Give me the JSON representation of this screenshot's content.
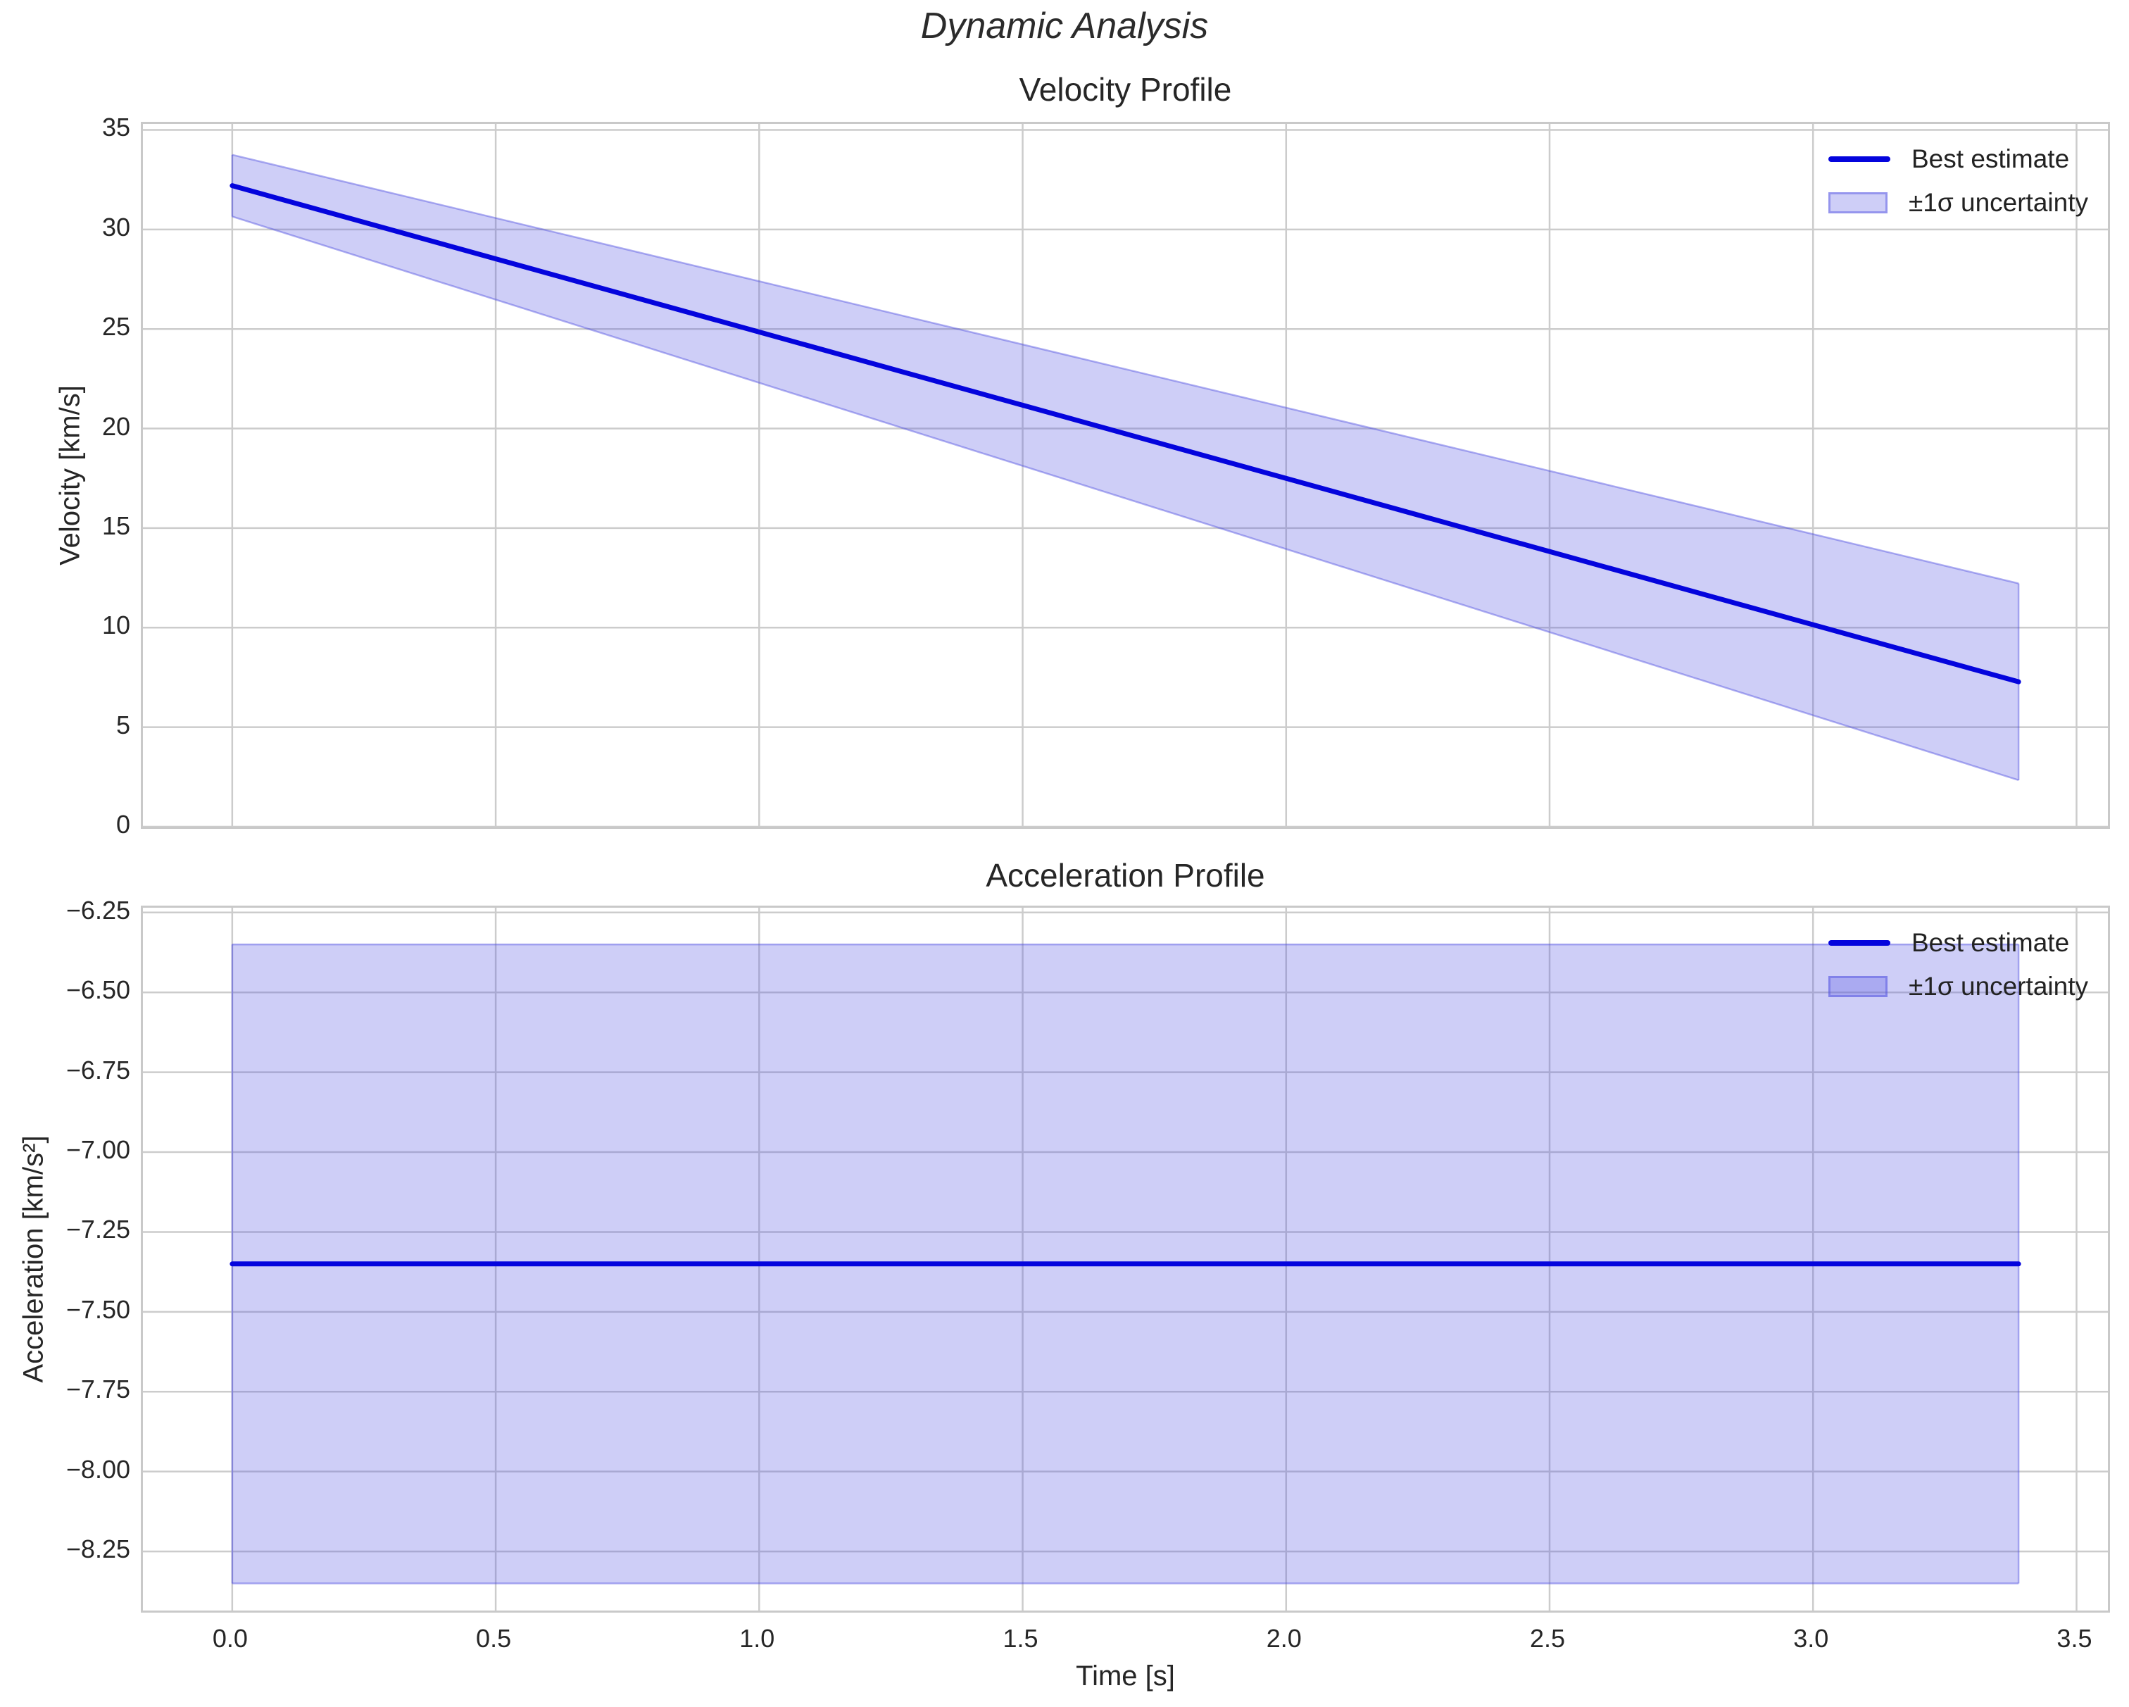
{
  "figure": {
    "title": "Dynamic Analysis"
  },
  "colors": {
    "line": "#0404dd",
    "band_rgb": "80,80,225",
    "band_fill_alpha": 0.28,
    "band_edge_alpha": 0.45,
    "grid": "#cccccc",
    "spine": "#c9c9c9",
    "text": "#262626"
  },
  "chart_data": [
    {
      "type": "line",
      "title": "Velocity Profile",
      "ylabel": "Velocity [km/s]",
      "xlabel": null,
      "xlim": [
        -0.1695,
        3.5595
      ],
      "ylim": [
        0,
        35.3
      ],
      "grid": true,
      "legend_position": "upper right",
      "show_xtick_labels": false,
      "xticks": [
        {
          "v": 0.0,
          "label": "0.0"
        },
        {
          "v": 0.5,
          "label": "0.5"
        },
        {
          "v": 1.0,
          "label": "1.0"
        },
        {
          "v": 1.5,
          "label": "1.5"
        },
        {
          "v": 2.0,
          "label": "2.0"
        },
        {
          "v": 2.5,
          "label": "2.5"
        },
        {
          "v": 3.0,
          "label": "3.0"
        },
        {
          "v": 3.5,
          "label": "3.5"
        }
      ],
      "yticks": [
        {
          "v": 0,
          "label": "0"
        },
        {
          "v": 5,
          "label": "5"
        },
        {
          "v": 10,
          "label": "10"
        },
        {
          "v": 15,
          "label": "15"
        },
        {
          "v": 20,
          "label": "20"
        },
        {
          "v": 25,
          "label": "25"
        },
        {
          "v": 30,
          "label": "30"
        },
        {
          "v": 35,
          "label": "35"
        }
      ],
      "series": [
        {
          "name": "Best estimate",
          "x": [
            0,
            3.39
          ],
          "y": [
            32.2,
            7.28
          ]
        }
      ],
      "band": {
        "name": "±1σ uncertainty",
        "x": [
          0,
          3.39
        ],
        "upper": [
          33.75,
          12.22
        ],
        "lower": [
          30.65,
          2.34
        ]
      },
      "legend": [
        {
          "swatch": "line",
          "label": "Best estimate"
        },
        {
          "swatch": "band",
          "label": "±1σ uncertainty"
        }
      ]
    },
    {
      "type": "line",
      "title": "Acceleration Profile",
      "ylabel": "Acceleration [km/s²]",
      "xlabel": "Time [s]",
      "xlim": [
        -0.1695,
        3.5595
      ],
      "ylim": [
        -8.435,
        -6.235
      ],
      "grid": true,
      "legend_position": "upper right",
      "show_xtick_labels": true,
      "xticks": [
        {
          "v": 0.0,
          "label": "0.0"
        },
        {
          "v": 0.5,
          "label": "0.5"
        },
        {
          "v": 1.0,
          "label": "1.0"
        },
        {
          "v": 1.5,
          "label": "1.5"
        },
        {
          "v": 2.0,
          "label": "2.0"
        },
        {
          "v": 2.5,
          "label": "2.5"
        },
        {
          "v": 3.0,
          "label": "3.0"
        },
        {
          "v": 3.5,
          "label": "3.5"
        }
      ],
      "yticks": [
        {
          "v": -8.25,
          "label": "−8.25"
        },
        {
          "v": -8.0,
          "label": "−8.00"
        },
        {
          "v": -7.75,
          "label": "−7.75"
        },
        {
          "v": -7.5,
          "label": "−7.50"
        },
        {
          "v": -7.25,
          "label": "−7.25"
        },
        {
          "v": -7.0,
          "label": "−7.00"
        },
        {
          "v": -6.75,
          "label": "−6.75"
        },
        {
          "v": -6.5,
          "label": "−6.50"
        },
        {
          "v": -6.25,
          "label": "−6.25"
        }
      ],
      "series": [
        {
          "name": "Best estimate",
          "x": [
            0,
            3.39
          ],
          "y": [
            -7.35,
            -7.35
          ]
        }
      ],
      "band": {
        "name": "±1σ uncertainty",
        "x": [
          0,
          3.39
        ],
        "upper": [
          -6.35,
          -6.35
        ],
        "lower": [
          -8.35,
          -8.35
        ]
      },
      "legend": [
        {
          "swatch": "line",
          "label": "Best estimate"
        },
        {
          "swatch": "band",
          "label": "±1σ uncertainty"
        }
      ]
    }
  ]
}
